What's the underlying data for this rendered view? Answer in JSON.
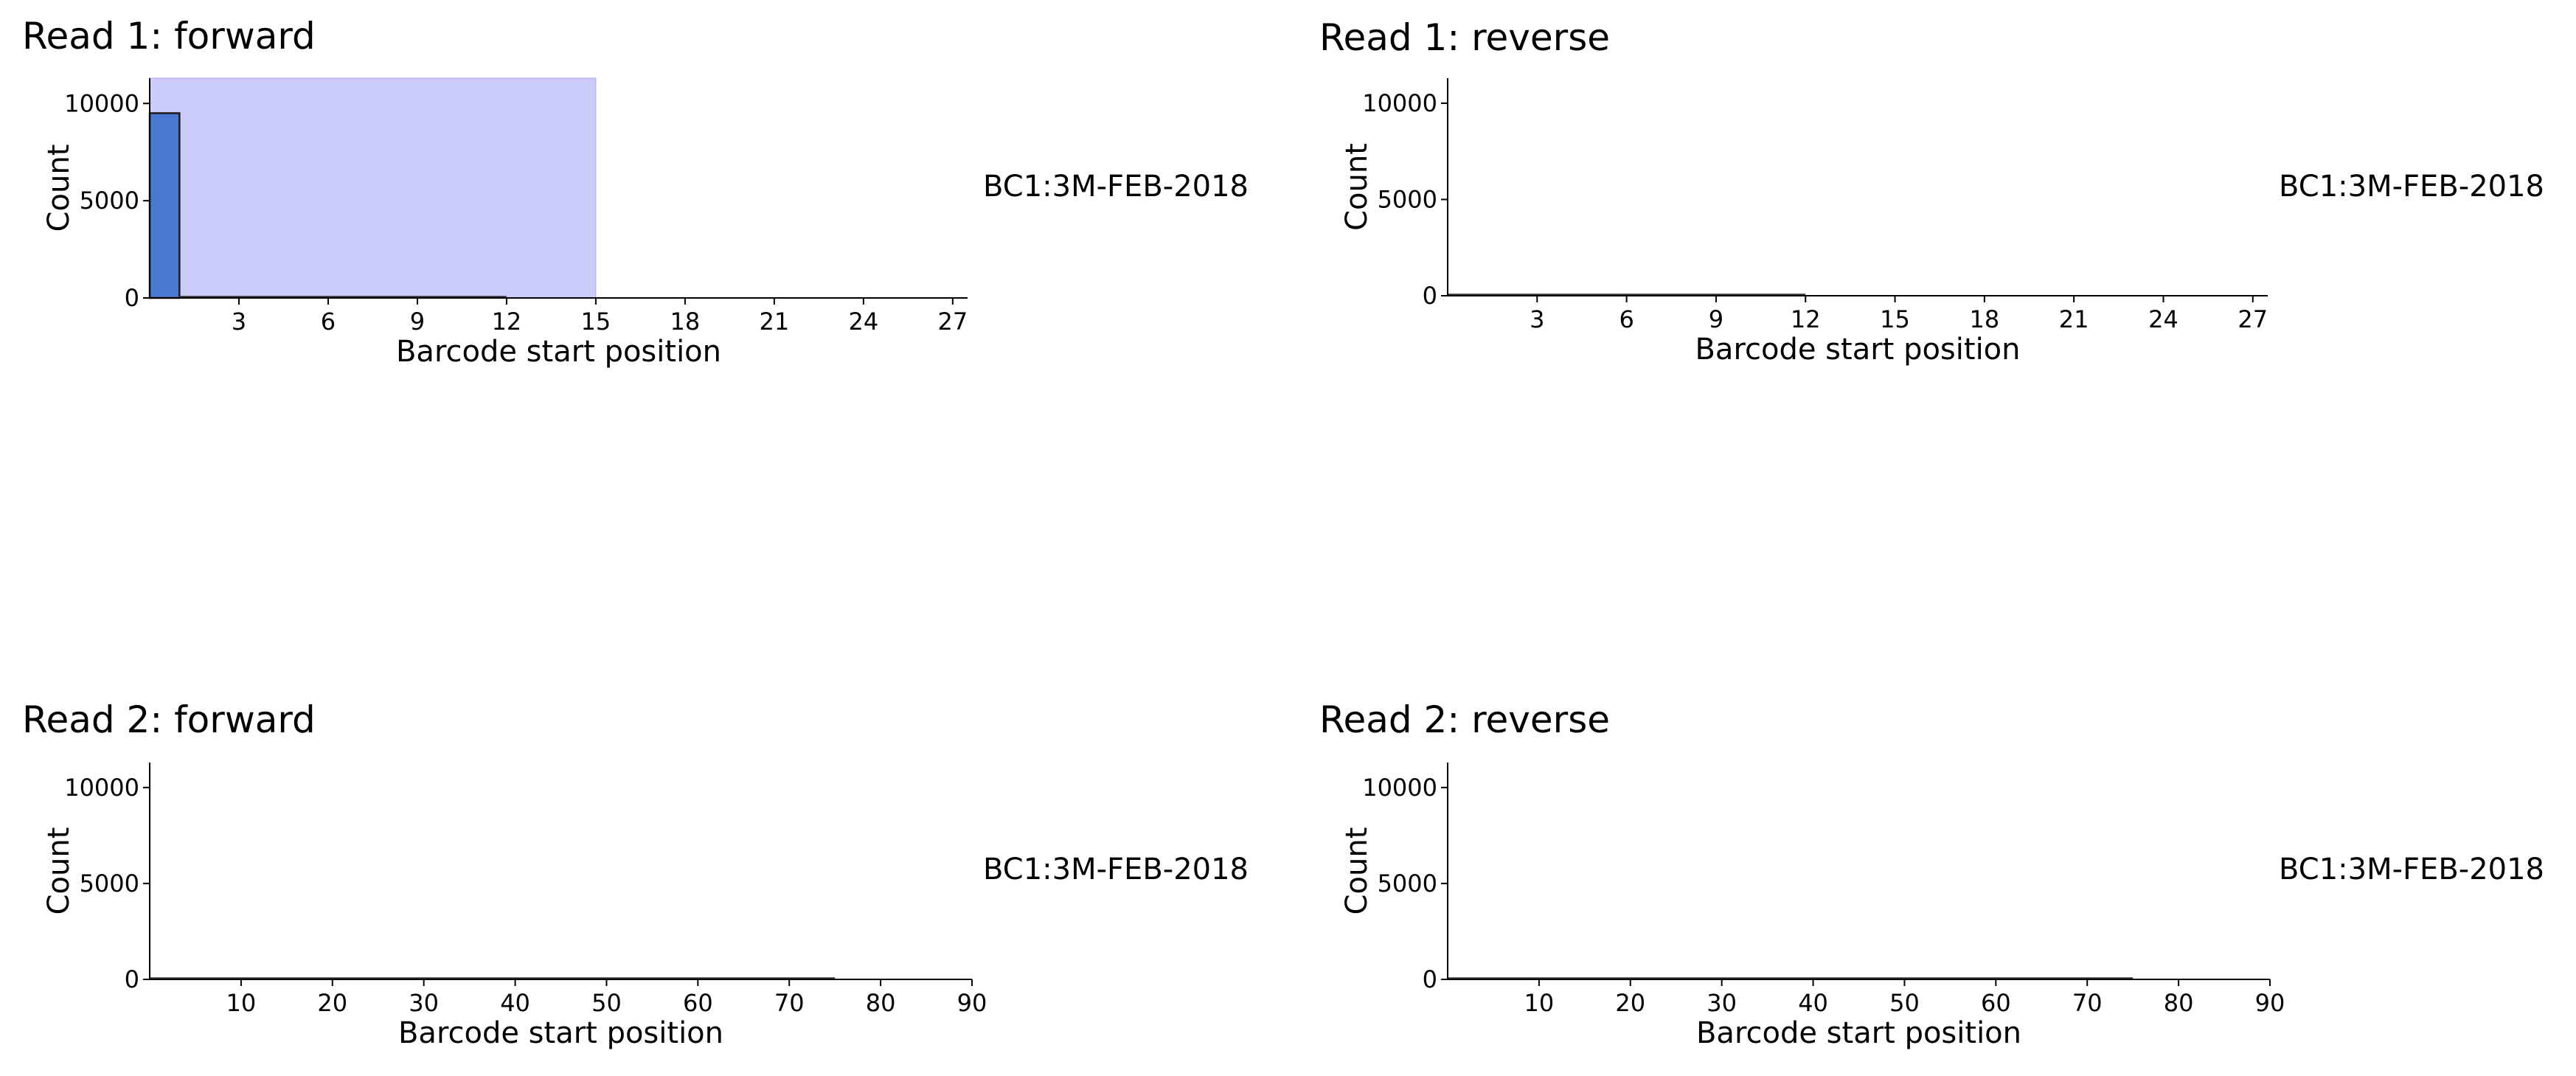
{
  "chart_data": [
    {
      "type": "bar",
      "title": "Read 1: forward",
      "xlabel": "Barcode start position",
      "ylabel": "Count",
      "annotation": "BC1:3M-FEB-2018",
      "xlim": [
        0,
        27.5
      ],
      "ylim": [
        0,
        11300
      ],
      "xticks": [
        3,
        6,
        9,
        12,
        15,
        18,
        21,
        24,
        27
      ],
      "yticks": [
        0,
        5000,
        10000
      ],
      "highlight_span": {
        "x": [
          0,
          15
        ],
        "color": "#ccccfa"
      },
      "bins": [
        {
          "x0": 0,
          "x1": 1,
          "value": 9500
        },
        {
          "x0": 1,
          "x1": 3,
          "value": 20
        },
        {
          "x0": 3,
          "x1": 12,
          "value": 8
        }
      ],
      "bar_color": "#4a78d0"
    },
    {
      "type": "bar",
      "title": "Read 1: reverse",
      "xlabel": "Barcode start position",
      "ylabel": "Count",
      "annotation": "BC1:3M-FEB-2018",
      "xlim": [
        0,
        27.5
      ],
      "ylim": [
        0,
        11300
      ],
      "xticks": [
        3,
        6,
        9,
        12,
        15,
        18,
        21,
        24,
        27
      ],
      "yticks": [
        0,
        5000,
        10000
      ],
      "bins": [
        {
          "x0": 0,
          "x1": 12,
          "value": 8
        }
      ],
      "bar_color": "#4a78d0"
    },
    {
      "type": "bar",
      "title": "Read 2: forward",
      "xlabel": "Barcode start position",
      "ylabel": "Count",
      "annotation": "BC1:3M-FEB-2018",
      "xlim": [
        0,
        90
      ],
      "ylim": [
        0,
        11300
      ],
      "xticks": [
        10,
        20,
        30,
        40,
        50,
        60,
        70,
        80,
        90
      ],
      "yticks": [
        0,
        5000,
        10000
      ],
      "bins": [
        {
          "x0": 0,
          "x1": 75,
          "value": 8
        }
      ],
      "bar_color": "#4a78d0"
    },
    {
      "type": "bar",
      "title": "Read 2: reverse",
      "xlabel": "Barcode start position",
      "ylabel": "Count",
      "annotation": "BC1:3M-FEB-2018",
      "xlim": [
        0,
        90
      ],
      "ylim": [
        0,
        11300
      ],
      "xticks": [
        10,
        20,
        30,
        40,
        50,
        60,
        70,
        80,
        90
      ],
      "yticks": [
        0,
        5000,
        10000
      ],
      "bins": [
        {
          "x0": 0,
          "x1": 75,
          "value": 8
        }
      ],
      "bar_color": "#4a78d0"
    }
  ]
}
